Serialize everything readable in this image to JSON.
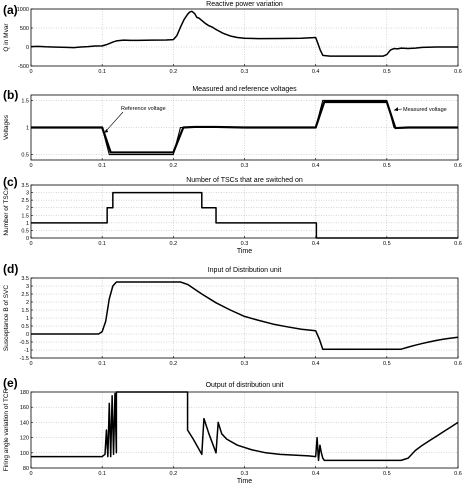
{
  "chart_data": [
    {
      "type": "line",
      "panel": "(a)",
      "title": "Reactive power variation",
      "xlabel": "",
      "ylabel": "Q in Mvar",
      "xlim": [
        0,
        0.6
      ],
      "ylim": [
        -500,
        1000
      ],
      "x_ticks": [
        "0",
        "0.1",
        "0.2",
        "0.3",
        "0.4",
        "0.5",
        "0.6"
      ],
      "y_ticks": [
        {
          "v": 1000,
          "label": "1000"
        },
        {
          "v": 500,
          "label": "500"
        },
        {
          "v": 0,
          "label": "0"
        },
        {
          "v": -500,
          "label": "-500"
        }
      ],
      "grid": true,
      "series": [
        {
          "x": [
            0,
            0.01,
            0.02,
            0.03,
            0.05,
            0.06,
            0.07,
            0.08,
            0.09,
            0.1,
            0.105,
            0.11,
            0.115,
            0.12,
            0.13,
            0.14,
            0.15,
            0.17,
            0.19,
            0.2,
            0.205,
            0.21,
            0.215,
            0.22,
            0.223,
            0.226,
            0.23,
            0.233,
            0.236,
            0.24,
            0.245,
            0.25,
            0.255,
            0.26,
            0.27,
            0.28,
            0.29,
            0.3,
            0.32,
            0.35,
            0.38,
            0.39,
            0.4,
            0.403,
            0.406,
            0.41,
            0.42,
            0.43,
            0.44,
            0.46,
            0.48,
            0.49,
            0.495,
            0.5,
            0.505,
            0.51,
            0.515,
            0.52,
            0.53,
            0.54,
            0.55,
            0.57,
            0.6
          ],
          "y": [
            10,
            15,
            5,
            0,
            -10,
            -15,
            0,
            10,
            25,
            30,
            55,
            90,
            130,
            160,
            180,
            175,
            175,
            180,
            185,
            195,
            300,
            520,
            720,
            860,
            920,
            940,
            880,
            780,
            760,
            700,
            620,
            560,
            520,
            460,
            360,
            290,
            250,
            230,
            220,
            225,
            230,
            240,
            250,
            100,
            -60,
            -220,
            -240,
            -240,
            -240,
            -240,
            -240,
            -240,
            -240,
            -200,
            -80,
            -40,
            -50,
            -30,
            -40,
            -30,
            -10,
            0,
            0
          ]
        }
      ]
    },
    {
      "type": "line",
      "panel": "(b)",
      "title": "Measured and reference voltages",
      "xlabel": "",
      "ylabel": "Voltages",
      "xlim": [
        0,
        0.6
      ],
      "ylim": [
        0.4,
        1.6
      ],
      "x_ticks": [
        "0",
        "0.1",
        "0.2",
        "0.3",
        "0.4",
        "0.5",
        "0.6"
      ],
      "y_ticks": [
        {
          "v": 1.5,
          "label": "1.5"
        },
        {
          "v": 1.0,
          "label": "1"
        },
        {
          "v": 0.5,
          "label": "0.5"
        }
      ],
      "grid": true,
      "annotations": [
        "Reference voltage",
        "Measured voltage"
      ],
      "series": [
        {
          "name": "Reference voltage",
          "x": [
            0,
            0.1,
            0.11,
            0.2,
            0.21,
            0.4,
            0.41,
            0.5,
            0.51,
            0.6
          ],
          "y": [
            1.0,
            1.0,
            0.5,
            0.5,
            1.0,
            1.0,
            1.5,
            1.5,
            1.0,
            1.0
          ]
        },
        {
          "name": "Measured voltage",
          "x": [
            0,
            0.1,
            0.112,
            0.2,
            0.214,
            0.23,
            0.26,
            0.3,
            0.4,
            0.412,
            0.5,
            0.512,
            0.53,
            0.6
          ],
          "y": [
            1.0,
            1.0,
            0.54,
            0.54,
            1.0,
            1.01,
            1.01,
            1.0,
            1.0,
            1.47,
            1.47,
            0.99,
            1.0,
            1.0
          ]
        }
      ]
    },
    {
      "type": "line",
      "panel": "(c)",
      "title": "Number of TSCs that are switched on",
      "xlabel": "Time",
      "ylabel": "Number of TSCs",
      "xlim": [
        0,
        0.6
      ],
      "ylim": [
        0,
        3.5
      ],
      "x_ticks": [
        "0",
        "0.1",
        "0.2",
        "0.3",
        "0.4",
        "0.5",
        "0.6"
      ],
      "y_ticks": [
        {
          "v": 0,
          "label": "0"
        },
        {
          "v": 0.5,
          "label": "0.5"
        },
        {
          "v": 1,
          "label": "1"
        },
        {
          "v": 1.5,
          "label": "1.5"
        },
        {
          "v": 2,
          "label": "2"
        },
        {
          "v": 2.5,
          "label": "2.5"
        },
        {
          "v": 3,
          "label": "3"
        },
        {
          "v": 3.5,
          "label": "3.5"
        }
      ],
      "grid": true,
      "series": [
        {
          "x": [
            0,
            0.107,
            0.107,
            0.115,
            0.115,
            0.24,
            0.24,
            0.26,
            0.26,
            0.401,
            0.401,
            0.6
          ],
          "y": [
            1,
            1,
            2,
            2,
            3,
            3,
            2,
            2,
            1,
            1,
            0,
            0
          ]
        }
      ]
    },
    {
      "type": "line",
      "panel": "(d)",
      "title": "Input of Distribution unit",
      "xlabel": "",
      "ylabel": "Susceptance B of SVC",
      "xlim": [
        0,
        0.6
      ],
      "ylim": [
        -1.5,
        3.5
      ],
      "x_ticks": [
        "0",
        "0.1",
        "0.2",
        "0.3",
        "0.4",
        "0.5",
        "0.6"
      ],
      "y_ticks": [
        {
          "v": 3.5,
          "label": "3.5"
        },
        {
          "v": 3,
          "label": "3"
        },
        {
          "v": 2.5,
          "label": "2.5"
        },
        {
          "v": 2,
          "label": "2"
        },
        {
          "v": 1.5,
          "label": "1.5"
        },
        {
          "v": 1,
          "label": "1"
        },
        {
          "v": 0.5,
          "label": "0.5"
        },
        {
          "v": 0,
          "label": "0"
        },
        {
          "v": -0.5,
          "label": "-0.5"
        },
        {
          "v": -1,
          "label": "-1"
        },
        {
          "v": -1.5,
          "label": "-1.5"
        }
      ],
      "grid": true,
      "series": [
        {
          "x": [
            0,
            0.095,
            0.1,
            0.105,
            0.11,
            0.115,
            0.12,
            0.21,
            0.22,
            0.24,
            0.26,
            0.28,
            0.3,
            0.32,
            0.34,
            0.36,
            0.38,
            0.4,
            0.405,
            0.41,
            0.52,
            0.53,
            0.54,
            0.55,
            0.56,
            0.57,
            0.58,
            0.59,
            0.6
          ],
          "y": [
            0,
            0,
            0.15,
            0.8,
            2.2,
            3.0,
            3.25,
            3.25,
            3.1,
            2.5,
            1.95,
            1.5,
            1.1,
            0.85,
            0.62,
            0.45,
            0.3,
            0.2,
            -0.3,
            -0.95,
            -0.95,
            -0.82,
            -0.7,
            -0.59,
            -0.49,
            -0.4,
            -0.32,
            -0.26,
            -0.2
          ]
        }
      ]
    },
    {
      "type": "line",
      "panel": "(e)",
      "title": "Output of distribution unit",
      "xlabel": "Time",
      "ylabel": "Firing angle variation of TCR",
      "xlim": [
        0,
        0.6
      ],
      "ylim": [
        80,
        180
      ],
      "x_ticks": [
        "0",
        "0.1",
        "0.2",
        "0.3",
        "0.4",
        "0.5",
        "0.6"
      ],
      "y_ticks": [
        {
          "v": 180,
          "label": "180"
        },
        {
          "v": 160,
          "label": "160"
        },
        {
          "v": 140,
          "label": "140"
        },
        {
          "v": 120,
          "label": "120"
        },
        {
          "v": 100,
          "label": "100"
        },
        {
          "v": 80,
          "label": "80"
        }
      ],
      "grid": true,
      "series": [
        {
          "x": [
            0,
            0.1,
            0.104,
            0.106,
            0.108,
            0.11,
            0.112,
            0.114,
            0.116,
            0.118,
            0.12,
            0.12,
            0.22,
            0.22,
            0.228,
            0.24,
            0.243,
            0.25,
            0.26,
            0.263,
            0.268,
            0.275,
            0.29,
            0.31,
            0.33,
            0.35,
            0.37,
            0.39,
            0.4,
            0.402,
            0.404,
            0.406,
            0.408,
            0.41,
            0.412,
            0.52,
            0.53,
            0.54,
            0.55,
            0.56,
            0.57,
            0.58,
            0.59,
            0.6
          ],
          "y": [
            95,
            95,
            98,
            130,
            95,
            165,
            95,
            175,
            98,
            178,
            100,
            180,
            180,
            130,
            118,
            98,
            145,
            125,
            100,
            140,
            125,
            118,
            110,
            104,
            100,
            98,
            97,
            96,
            95,
            120,
            90,
            110,
            100,
            93,
            90,
            90,
            93,
            103,
            110,
            116,
            122,
            128,
            134,
            140
          ]
        }
      ]
    }
  ]
}
